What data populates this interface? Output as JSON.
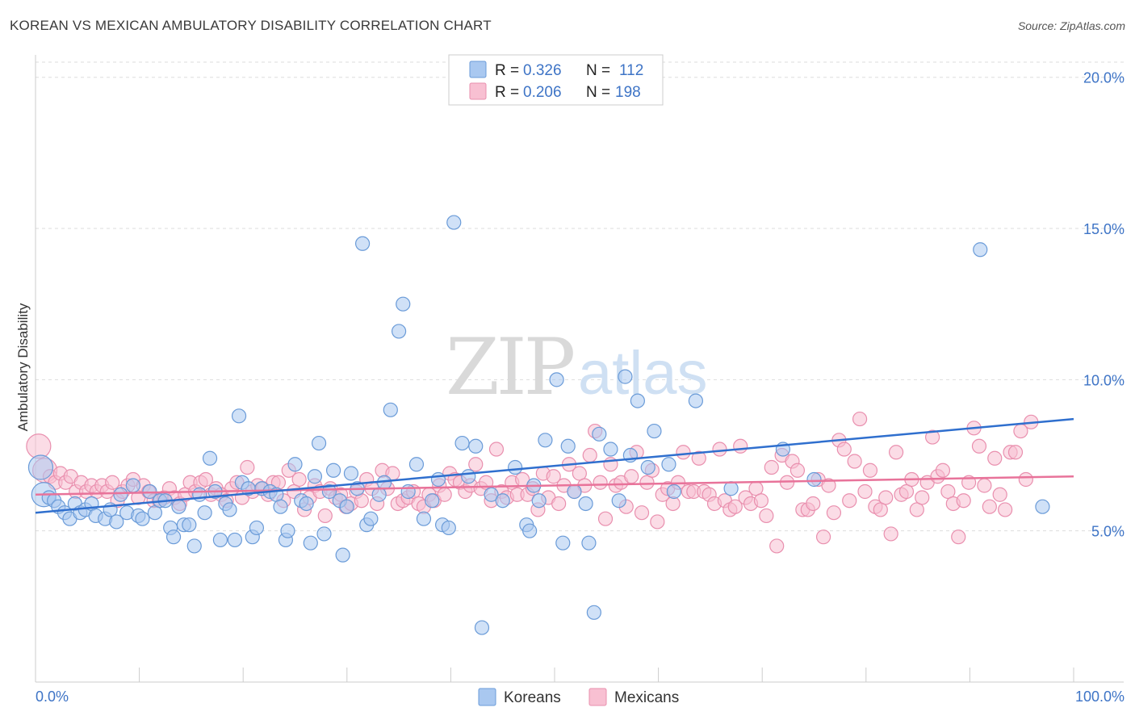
{
  "title": "KOREAN VS MEXICAN AMBULATORY DISABILITY CORRELATION CHART",
  "source": "Source: ZipAtlas.com",
  "watermark": {
    "zip": "ZIP",
    "atlas": "atlas"
  },
  "colors": {
    "koreans_fill": "#a9c8f0",
    "koreans_stroke": "#6a9bd8",
    "koreans_line": "#2f6fce",
    "mexicans_fill": "#f8c0d2",
    "mexicans_stroke": "#e98fae",
    "mexicans_line": "#e8739a",
    "tick_label": "#3e74c6",
    "grid": "#dddddd"
  },
  "legend": {
    "rows": [
      {
        "r_label": "R =",
        "r_value": "0.326",
        "n_label": "N =",
        "n_value": "112"
      },
      {
        "r_label": "R =",
        "r_value": "0.206",
        "n_label": "N =",
        "n_value": "198"
      }
    ]
  },
  "chart_data": {
    "type": "scatter",
    "title": "KOREAN VS MEXICAN AMBULATORY DISABILITY CORRELATION CHART",
    "xlabel": "",
    "ylabel": "Ambulatory Disability",
    "xlim": [
      0,
      100
    ],
    "ylim": [
      0,
      20.5
    ],
    "x_tick_labels": {
      "left": "0.0%",
      "right": "100.0%"
    },
    "y_ticks": [
      {
        "value": 5,
        "label": "5.0%"
      },
      {
        "value": 10,
        "label": "10.0%"
      },
      {
        "value": 15,
        "label": "15.0%"
      },
      {
        "value": 20,
        "label": "20.0%"
      }
    ],
    "grid": "horizontal dashed",
    "legend_position": "top-center",
    "series": [
      {
        "name": "Koreans",
        "trend": [
          [
            0,
            5.6
          ],
          [
            100,
            8.7
          ]
        ],
        "points": [
          [
            0.5,
            7.1
          ],
          [
            0.8,
            6.2
          ],
          [
            1.3,
            6.1
          ],
          [
            1.8,
            6.0
          ],
          [
            2.2,
            5.8
          ],
          [
            2.8,
            5.6
          ],
          [
            3.3,
            5.4
          ],
          [
            3.8,
            5.9
          ],
          [
            4.3,
            5.6
          ],
          [
            4.8,
            5.7
          ],
          [
            5.4,
            5.9
          ],
          [
            5.8,
            5.5
          ],
          [
            6.7,
            5.4
          ],
          [
            7.2,
            5.7
          ],
          [
            7.8,
            5.3
          ],
          [
            8.2,
            6.2
          ],
          [
            8.8,
            5.6
          ],
          [
            9.4,
            6.5
          ],
          [
            9.9,
            5.5
          ],
          [
            10.3,
            5.4
          ],
          [
            11.0,
            6.3
          ],
          [
            11.5,
            5.6
          ],
          [
            12.0,
            6.0
          ],
          [
            12.5,
            6.0
          ],
          [
            13.0,
            5.1
          ],
          [
            13.3,
            4.8
          ],
          [
            13.8,
            5.8
          ],
          [
            14.3,
            5.2
          ],
          [
            14.8,
            5.2
          ],
          [
            15.3,
            4.5
          ],
          [
            15.8,
            6.2
          ],
          [
            16.3,
            5.6
          ],
          [
            16.8,
            7.4
          ],
          [
            17.3,
            6.3
          ],
          [
            17.8,
            4.7
          ],
          [
            18.3,
            5.9
          ],
          [
            18.7,
            5.7
          ],
          [
            19.2,
            4.7
          ],
          [
            19.6,
            8.8
          ],
          [
            19.9,
            6.6
          ],
          [
            20.5,
            6.4
          ],
          [
            20.9,
            4.8
          ],
          [
            21.3,
            5.1
          ],
          [
            21.8,
            6.4
          ],
          [
            22.6,
            6.3
          ],
          [
            23.2,
            6.2
          ],
          [
            23.6,
            5.8
          ],
          [
            24.1,
            4.7
          ],
          [
            24.3,
            5.0
          ],
          [
            25.0,
            7.2
          ],
          [
            25.6,
            6.0
          ],
          [
            26.1,
            5.9
          ],
          [
            26.5,
            4.6
          ],
          [
            26.9,
            6.8
          ],
          [
            27.3,
            7.9
          ],
          [
            27.8,
            4.9
          ],
          [
            28.3,
            6.3
          ],
          [
            28.7,
            7.0
          ],
          [
            29.3,
            6.0
          ],
          [
            29.6,
            4.2
          ],
          [
            30.0,
            5.8
          ],
          [
            30.4,
            6.9
          ],
          [
            31.0,
            6.4
          ],
          [
            31.5,
            14.5
          ],
          [
            31.9,
            5.2
          ],
          [
            32.3,
            5.4
          ],
          [
            33.1,
            6.2
          ],
          [
            33.6,
            6.6
          ],
          [
            34.2,
            9.0
          ],
          [
            35.0,
            11.6
          ],
          [
            35.4,
            12.5
          ],
          [
            35.9,
            6.3
          ],
          [
            36.7,
            7.2
          ],
          [
            37.4,
            5.4
          ],
          [
            38.2,
            6.0
          ],
          [
            38.8,
            6.7
          ],
          [
            39.2,
            5.2
          ],
          [
            39.8,
            5.1
          ],
          [
            40.3,
            15.2
          ],
          [
            41.1,
            7.9
          ],
          [
            41.7,
            6.8
          ],
          [
            42.4,
            7.8
          ],
          [
            43.0,
            1.8
          ],
          [
            43.9,
            6.2
          ],
          [
            45.0,
            6.0
          ],
          [
            46.2,
            7.1
          ],
          [
            47.3,
            5.2
          ],
          [
            47.6,
            5.0
          ],
          [
            48.0,
            6.5
          ],
          [
            48.5,
            6.0
          ],
          [
            49.1,
            8.0
          ],
          [
            50.2,
            10.0
          ],
          [
            50.8,
            4.6
          ],
          [
            51.3,
            7.8
          ],
          [
            51.9,
            6.3
          ],
          [
            53.0,
            5.9
          ],
          [
            53.3,
            4.6
          ],
          [
            53.8,
            2.3
          ],
          [
            54.3,
            8.2
          ],
          [
            55.4,
            7.7
          ],
          [
            56.2,
            6.0
          ],
          [
            56.8,
            10.1
          ],
          [
            57.3,
            7.5
          ],
          [
            58.0,
            9.3
          ],
          [
            59.0,
            7.1
          ],
          [
            59.6,
            8.3
          ],
          [
            61.0,
            7.2
          ],
          [
            61.5,
            6.3
          ],
          [
            63.6,
            9.3
          ],
          [
            67.0,
            6.4
          ],
          [
            72.0,
            7.7
          ],
          [
            75.0,
            6.7
          ],
          [
            91.0,
            14.3
          ],
          [
            97.0,
            5.8
          ]
        ]
      },
      {
        "name": "Mexicans",
        "trend": [
          [
            0,
            6.2
          ],
          [
            100,
            6.8
          ]
        ],
        "points": [
          [
            0.3,
            7.8
          ],
          [
            0.9,
            7.0
          ],
          [
            1.4,
            6.8
          ],
          [
            1.9,
            6.6
          ],
          [
            2.4,
            6.9
          ],
          [
            2.9,
            6.6
          ],
          [
            3.4,
            6.8
          ],
          [
            3.9,
            6.3
          ],
          [
            4.4,
            6.6
          ],
          [
            4.9,
            6.3
          ],
          [
            5.4,
            6.5
          ],
          [
            5.9,
            6.3
          ],
          [
            6.4,
            6.5
          ],
          [
            6.9,
            6.3
          ],
          [
            7.4,
            6.6
          ],
          [
            7.9,
            6.0
          ],
          [
            8.4,
            6.3
          ],
          [
            8.9,
            6.5
          ],
          [
            9.4,
            6.7
          ],
          [
            9.9,
            6.1
          ],
          [
            10.4,
            6.5
          ],
          [
            10.9,
            6.3
          ],
          [
            11.4,
            6.0
          ],
          [
            11.9,
            6.0
          ],
          [
            12.4,
            6.1
          ],
          [
            12.9,
            6.4
          ],
          [
            13.4,
            6.1
          ],
          [
            13.9,
            5.9
          ],
          [
            14.4,
            6.2
          ],
          [
            14.9,
            6.6
          ],
          [
            15.4,
            6.3
          ],
          [
            15.9,
            6.6
          ],
          [
            16.4,
            6.7
          ],
          [
            16.9,
            6.2
          ],
          [
            17.4,
            6.4
          ],
          [
            17.9,
            6.2
          ],
          [
            18.4,
            6.0
          ],
          [
            18.9,
            6.4
          ],
          [
            19.4,
            6.6
          ],
          [
            19.9,
            6.1
          ],
          [
            20.4,
            7.1
          ],
          [
            20.9,
            6.3
          ],
          [
            21.4,
            6.5
          ],
          [
            21.9,
            6.4
          ],
          [
            22.4,
            6.2
          ],
          [
            22.9,
            6.6
          ],
          [
            23.4,
            6.6
          ],
          [
            23.9,
            6.0
          ],
          [
            24.4,
            7.0
          ],
          [
            24.9,
            6.3
          ],
          [
            25.4,
            6.7
          ],
          [
            25.9,
            5.7
          ],
          [
            26.4,
            6.1
          ],
          [
            26.9,
            6.5
          ],
          [
            27.4,
            6.3
          ],
          [
            27.9,
            5.5
          ],
          [
            28.4,
            6.4
          ],
          [
            28.9,
            6.1
          ],
          [
            29.4,
            6.2
          ],
          [
            29.9,
            5.8
          ],
          [
            30.4,
            5.9
          ],
          [
            30.9,
            6.3
          ],
          [
            31.4,
            6.0
          ],
          [
            31.9,
            6.7
          ],
          [
            32.4,
            6.4
          ],
          [
            32.9,
            5.9
          ],
          [
            33.4,
            7.0
          ],
          [
            33.9,
            6.4
          ],
          [
            34.4,
            6.9
          ],
          [
            34.9,
            5.9
          ],
          [
            35.4,
            6.0
          ],
          [
            35.9,
            6.1
          ],
          [
            36.4,
            6.3
          ],
          [
            36.9,
            5.9
          ],
          [
            37.4,
            5.8
          ],
          [
            37.9,
            6.2
          ],
          [
            38.4,
            6.0
          ],
          [
            38.9,
            6.5
          ],
          [
            39.4,
            6.2
          ],
          [
            39.9,
            6.9
          ],
          [
            40.4,
            6.7
          ],
          [
            40.9,
            6.6
          ],
          [
            41.4,
            6.3
          ],
          [
            41.9,
            6.5
          ],
          [
            42.4,
            7.2
          ],
          [
            42.9,
            6.4
          ],
          [
            43.4,
            6.6
          ],
          [
            43.9,
            6.0
          ],
          [
            44.4,
            7.7
          ],
          [
            44.9,
            6.3
          ],
          [
            45.4,
            6.1
          ],
          [
            45.9,
            6.6
          ],
          [
            46.4,
            6.2
          ],
          [
            46.9,
            6.7
          ],
          [
            47.4,
            6.2
          ],
          [
            47.9,
            6.4
          ],
          [
            48.4,
            5.7
          ],
          [
            48.9,
            6.9
          ],
          [
            49.4,
            6.1
          ],
          [
            49.9,
            6.8
          ],
          [
            50.4,
            5.9
          ],
          [
            50.9,
            6.5
          ],
          [
            51.4,
            7.2
          ],
          [
            51.9,
            6.3
          ],
          [
            52.4,
            6.9
          ],
          [
            52.9,
            6.5
          ],
          [
            53.4,
            7.5
          ],
          [
            53.9,
            8.3
          ],
          [
            54.4,
            6.6
          ],
          [
            54.9,
            5.4
          ],
          [
            55.4,
            7.2
          ],
          [
            55.9,
            6.5
          ],
          [
            56.4,
            6.6
          ],
          [
            56.9,
            5.8
          ],
          [
            57.4,
            6.8
          ],
          [
            57.9,
            7.6
          ],
          [
            58.4,
            5.6
          ],
          [
            58.9,
            6.6
          ],
          [
            59.4,
            7.0
          ],
          [
            59.9,
            5.3
          ],
          [
            60.4,
            6.2
          ],
          [
            60.9,
            6.4
          ],
          [
            61.4,
            5.9
          ],
          [
            61.9,
            6.6
          ],
          [
            62.4,
            7.6
          ],
          [
            62.9,
            6.3
          ],
          [
            63.4,
            6.3
          ],
          [
            63.9,
            7.4
          ],
          [
            64.4,
            6.3
          ],
          [
            64.9,
            6.2
          ],
          [
            65.4,
            5.9
          ],
          [
            65.9,
            7.7
          ],
          [
            66.4,
            6.0
          ],
          [
            66.9,
            5.7
          ],
          [
            67.4,
            5.8
          ],
          [
            67.9,
            7.8
          ],
          [
            68.4,
            6.1
          ],
          [
            68.9,
            5.9
          ],
          [
            69.4,
            6.4
          ],
          [
            69.9,
            6.0
          ],
          [
            70.4,
            5.5
          ],
          [
            70.9,
            7.1
          ],
          [
            71.4,
            4.5
          ],
          [
            71.9,
            7.5
          ],
          [
            72.4,
            6.6
          ],
          [
            72.9,
            7.3
          ],
          [
            73.4,
            7.0
          ],
          [
            73.9,
            5.7
          ],
          [
            74.4,
            5.7
          ],
          [
            74.9,
            5.9
          ],
          [
            75.4,
            6.7
          ],
          [
            75.9,
            4.8
          ],
          [
            76.4,
            6.5
          ],
          [
            76.9,
            5.6
          ],
          [
            77.4,
            8.0
          ],
          [
            77.9,
            7.7
          ],
          [
            78.4,
            6.0
          ],
          [
            78.9,
            7.3
          ],
          [
            79.4,
            8.7
          ],
          [
            79.9,
            6.3
          ],
          [
            80.4,
            7.0
          ],
          [
            80.9,
            5.8
          ],
          [
            81.4,
            5.7
          ],
          [
            81.9,
            6.1
          ],
          [
            82.4,
            4.9
          ],
          [
            82.9,
            7.6
          ],
          [
            83.4,
            6.2
          ],
          [
            83.9,
            6.3
          ],
          [
            84.4,
            6.7
          ],
          [
            84.9,
            5.7
          ],
          [
            85.4,
            6.1
          ],
          [
            85.9,
            6.6
          ],
          [
            86.4,
            8.1
          ],
          [
            86.9,
            6.8
          ],
          [
            87.4,
            7.0
          ],
          [
            87.9,
            6.3
          ],
          [
            88.4,
            5.9
          ],
          [
            88.9,
            4.8
          ],
          [
            89.4,
            6.0
          ],
          [
            89.9,
            6.6
          ],
          [
            90.4,
            8.4
          ],
          [
            90.9,
            7.8
          ],
          [
            91.4,
            6.5
          ],
          [
            91.9,
            5.8
          ],
          [
            92.4,
            7.4
          ],
          [
            92.9,
            6.2
          ],
          [
            93.4,
            5.7
          ],
          [
            93.9,
            7.6
          ],
          [
            94.4,
            7.6
          ],
          [
            94.9,
            8.3
          ],
          [
            95.4,
            6.7
          ],
          [
            95.9,
            8.6
          ]
        ]
      }
    ]
  }
}
